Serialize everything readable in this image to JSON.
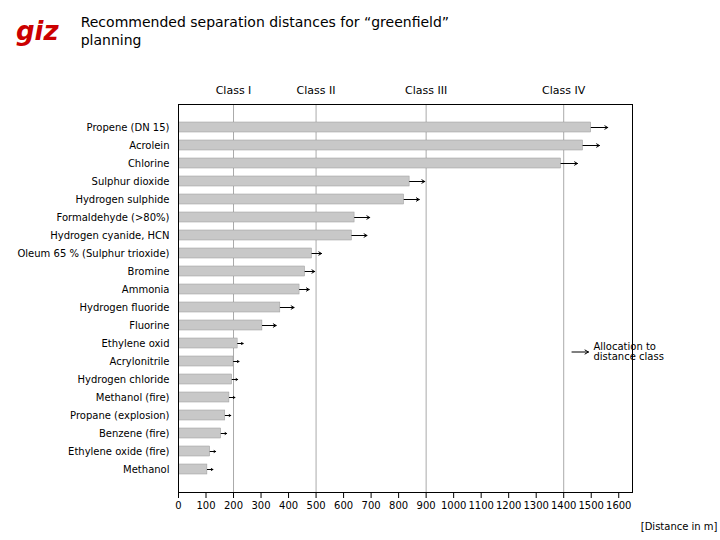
{
  "chart_data": {
    "type": "bar",
    "orientation": "horizontal",
    "title": "Recommended separation distances for “greenfield”\nplanning",
    "xlabel": "[Distance in m]",
    "categories": [
      "Propene (DN 15)",
      "Acrolein",
      "Chlorine",
      "Sulphur dioxide",
      "Hydrogen sulphide",
      "Formaldehyde (>80%)",
      "Hydrogen cyanide, HCN",
      "Oleum 65 % (Sulphur trioxide)",
      "Bromine",
      "Ammonia",
      "Hydrogen fluoride",
      "Fluorine",
      "Ethylene oxid",
      "Acrylonitrile",
      "Hydrogen chloride",
      "Methanol (fire)",
      "Propane (explosion)",
      "Benzene (fire)",
      "Ethylene oxide (fire)",
      "Methanol"
    ],
    "values": [
      1500,
      1470,
      1390,
      840,
      820,
      640,
      630,
      485,
      460,
      440,
      370,
      305,
      215,
      200,
      195,
      185,
      170,
      155,
      115,
      105
    ],
    "arrow_ext": [
      60,
      60,
      60,
      55,
      55,
      55,
      55,
      35,
      35,
      35,
      50,
      50,
      20,
      20,
      20,
      20,
      20,
      20,
      20,
      20
    ],
    "color": "#c8c8c8",
    "xlim": [
      0,
      1650
    ],
    "xticks": [
      0,
      100,
      200,
      300,
      400,
      500,
      600,
      700,
      800,
      900,
      1000,
      1100,
      1200,
      1300,
      1400,
      1500,
      1600
    ],
    "grid": false,
    "classes": [
      {
        "value": 200,
        "label": "Class I"
      },
      {
        "value": 500,
        "label": "Class II"
      },
      {
        "value": 900,
        "label": "Class III"
      },
      {
        "value": 1400,
        "label": "Class IV"
      }
    ],
    "annotations": [
      {
        "text": "giz",
        "color": "#cc0000"
      },
      {
        "text": "Allocation to\ndistance class",
        "x_start": 1430,
        "x_end": 1490,
        "category": "Acrylonitrile"
      }
    ]
  }
}
